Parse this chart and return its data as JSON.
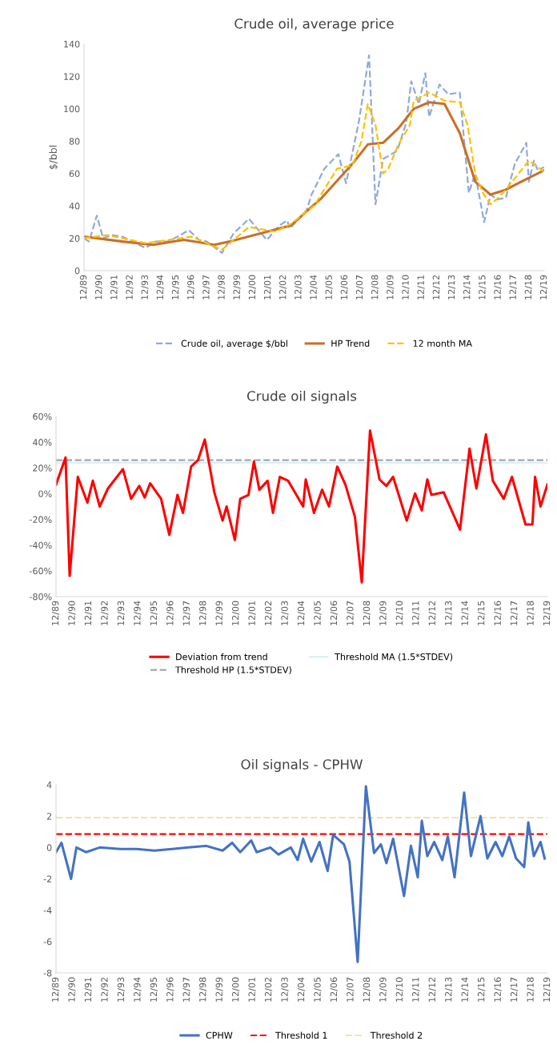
{
  "chart_data": [
    {
      "type": "line",
      "title": "Crude oil, average price",
      "ylabel": "$/bbl",
      "series": [
        {
          "name": "Crude oil, average $/bbl",
          "color": "#8faadc",
          "line_style": "dashed",
          "x": [
            "1989-12",
            "1990-04",
            "1990-10",
            "1991-03",
            "1991-10",
            "1992-06",
            "1993-12",
            "1994-08",
            "1995-06",
            "1996-10",
            "1997-06",
            "1997-12",
            "1998-12",
            "1999-09",
            "2000-09",
            "2001-11",
            "2002-09",
            "2003-03",
            "2003-05",
            "2004-06",
            "2004-10",
            "2005-08",
            "2006-07",
            "2007-01",
            "2007-11",
            "2008-07",
            "2008-12",
            "2009-06",
            "2010-05",
            "2010-12",
            "2011-04",
            "2011-10",
            "2012-03",
            "2012-06",
            "2013-02",
            "2013-09",
            "2014-06",
            "2015-01",
            "2015-06",
            "2016-01",
            "2016-06",
            "2016-11",
            "2017-06",
            "2018-01",
            "2018-10",
            "2018-12",
            "2019-04",
            "2019-07",
            "2019-12"
          ],
          "values": [
            20,
            18,
            34,
            20,
            22,
            21,
            14,
            18,
            18,
            25,
            19,
            18,
            11,
            23,
            32,
            19,
            28,
            31,
            26,
            37,
            47,
            63,
            72,
            54,
            92,
            133,
            41,
            69,
            74,
            91,
            117,
            103,
            122,
            95,
            115,
            109,
            110,
            48,
            60,
            30,
            47,
            44,
            45,
            66,
            79,
            55,
            68,
            62,
            64
          ]
        },
        {
          "name": "HP Trend",
          "color": "#c9702a",
          "line_style": "solid",
          "x": [
            "1989-12",
            "1992-06",
            "1994-06",
            "1996-06",
            "1998-06",
            "1999-06",
            "2001-06",
            "2003-06",
            "2005-06",
            "2007-06",
            "2008-06",
            "2009-06",
            "2010-06",
            "2011-06",
            "2012-06",
            "2013-06",
            "2014-06",
            "2015-06",
            "2016-06",
            "2017-06",
            "2018-06",
            "2019-12"
          ],
          "values": [
            21,
            18,
            16,
            19,
            16,
            18,
            23,
            28,
            45,
            66,
            78,
            79,
            88,
            100,
            104,
            103,
            85,
            55,
            47,
            50,
            55,
            62
          ]
        },
        {
          "name": "12 month MA",
          "color": "#ffc000",
          "line_style": "dashed",
          "x": [
            "1989-12",
            "1991-06",
            "1993-12",
            "1996-12",
            "1998-12",
            "2000-09",
            "2002-06",
            "2003-06",
            "2004-12",
            "2006-06",
            "2007-06",
            "2008-01",
            "2008-06",
            "2008-12",
            "2009-06",
            "2009-10",
            "2010-06",
            "2011-03",
            "2011-06",
            "2012-06",
            "2013-06",
            "2014-06",
            "2014-12",
            "2015-06",
            "2015-12",
            "2016-06",
            "2016-12",
            "2017-06",
            "2018-06",
            "2018-12",
            "2019-12"
          ],
          "values": [
            20,
            22,
            17,
            21,
            13,
            27,
            24,
            29,
            40,
            63,
            65,
            80,
            103,
            90,
            60,
            63,
            78,
            90,
            105,
            110,
            105,
            104,
            90,
            60,
            48,
            41,
            45,
            50,
            62,
            68,
            61
          ]
        }
      ],
      "xlim": [
        "1989-12",
        "2019-12"
      ],
      "xticks": [
        {
          "value": "1989-12",
          "label": "12/89"
        },
        {
          "value": "1990-12",
          "label": "12/90"
        },
        {
          "value": "1991-12",
          "label": "12/91"
        },
        {
          "value": "1992-12",
          "label": "12/92"
        },
        {
          "value": "1993-12",
          "label": "12/93"
        },
        {
          "value": "1994-12",
          "label": "12/94"
        },
        {
          "value": "1995-12",
          "label": "12/95"
        },
        {
          "value": "1996-12",
          "label": "12/96"
        },
        {
          "value": "1997-12",
          "label": "12/97"
        },
        {
          "value": "1998-12",
          "label": "12/98"
        },
        {
          "value": "1999-12",
          "label": "12/99"
        },
        {
          "value": "2000-12",
          "label": "12/00"
        },
        {
          "value": "2001-12",
          "label": "12/01"
        },
        {
          "value": "2002-12",
          "label": "12/02"
        },
        {
          "value": "2003-12",
          "label": "12/03"
        },
        {
          "value": "2004-12",
          "label": "12/04"
        },
        {
          "value": "2005-12",
          "label": "12/05"
        },
        {
          "value": "2006-12",
          "label": "12/06"
        },
        {
          "value": "2007-12",
          "label": "12/07"
        },
        {
          "value": "2008-12",
          "label": "12/08"
        },
        {
          "value": "2009-12",
          "label": "12/09"
        },
        {
          "value": "2010-12",
          "label": "12/10"
        },
        {
          "value": "2011-12",
          "label": "12/11"
        },
        {
          "value": "2012-12",
          "label": "12/12"
        },
        {
          "value": "2013-12",
          "label": "12/13"
        },
        {
          "value": "2014-12",
          "label": "12/14"
        },
        {
          "value": "2015-12",
          "label": "12/15"
        },
        {
          "value": "2016-12",
          "label": "12/16"
        },
        {
          "value": "2017-12",
          "label": "12/17"
        },
        {
          "value": "2018-12",
          "label": "12/18"
        },
        {
          "value": "2019-12",
          "label": "12/19"
        }
      ],
      "ylim": [
        0,
        140
      ],
      "yticks": [
        0,
        20,
        40,
        60,
        80,
        100,
        120,
        140
      ],
      "grid": false,
      "legend": "bottom"
    },
    {
      "type": "line",
      "title": "Crude oil signals",
      "series": [
        {
          "name": "Deviation from trend",
          "color": "#ff0000",
          "line_style": "solid",
          "x": [
            "1989-12",
            "1990-07",
            "1990-10",
            "1991-04",
            "1991-11",
            "1992-03",
            "1992-08",
            "1993-02",
            "1994-01",
            "1994-07",
            "1995-01",
            "1995-05",
            "1995-09",
            "1996-05",
            "1996-11",
            "1997-05",
            "1997-09",
            "1998-03",
            "1998-08",
            "1999-01",
            "1999-08",
            "2000-02",
            "2000-05",
            "2000-11",
            "2001-03",
            "2001-09",
            "2002-01",
            "2002-05",
            "2002-11",
            "2003-03",
            "2003-08",
            "2004-02",
            "2004-07",
            "2005-01",
            "2005-03",
            "2005-09",
            "2006-03",
            "2006-08",
            "2007-02",
            "2007-08",
            "2008-03",
            "2008-08",
            "2009-02",
            "2009-09",
            "2010-02",
            "2010-07",
            "2011-05",
            "2011-11",
            "2012-04",
            "2012-08",
            "2012-11",
            "2013-08",
            "2014-08",
            "2015-03",
            "2015-08",
            "2016-03",
            "2016-08",
            "2017-04",
            "2017-10",
            "2018-08",
            "2019-01",
            "2019-03",
            "2019-07",
            "2019-12"
          ],
          "values": [
            7,
            28,
            -64,
            13,
            -7,
            10,
            -10,
            4,
            19,
            -4,
            6,
            -3,
            8,
            -4,
            -32,
            -1,
            -15,
            21,
            26,
            42,
            1,
            -21,
            -10,
            -36,
            -4,
            -1,
            25,
            3,
            10,
            -15,
            13,
            10,
            1,
            -10,
            11,
            -15,
            3,
            -10,
            21,
            7,
            -18,
            -69,
            49,
            11,
            6,
            13,
            -21,
            0,
            -13,
            11,
            -1,
            1,
            -28,
            35,
            4,
            46,
            10,
            -4,
            13,
            -24,
            -24,
            13,
            -10,
            7
          ]
        }
      ],
      "ref_lines": [
        {
          "axis": "y",
          "value": 26,
          "label": "Threshold HP (1.5*STDEV)",
          "color": "#a6a6a6",
          "line_style": "dashed"
        },
        {
          "axis": "y",
          "value": 24,
          "label": "Threshold MA (1.5*STDEV)",
          "color": "#dbeef4",
          "line_style": "solid"
        }
      ],
      "xlim": [
        "1989-12",
        "2019-12"
      ],
      "xticks": [
        {
          "value": "1989-12",
          "label": "12/89"
        },
        {
          "value": "1990-12",
          "label": "12/90"
        },
        {
          "value": "1991-12",
          "label": "12/91"
        },
        {
          "value": "1992-12",
          "label": "12/92"
        },
        {
          "value": "1993-12",
          "label": "12/93"
        },
        {
          "value": "1994-12",
          "label": "12/94"
        },
        {
          "value": "1995-12",
          "label": "12/95"
        },
        {
          "value": "1996-12",
          "label": "12/96"
        },
        {
          "value": "1997-12",
          "label": "12/97"
        },
        {
          "value": "1998-12",
          "label": "12/98"
        },
        {
          "value": "1999-12",
          "label": "12/99"
        },
        {
          "value": "2000-12",
          "label": "12/00"
        },
        {
          "value": "2001-12",
          "label": "12/01"
        },
        {
          "value": "2002-12",
          "label": "12/02"
        },
        {
          "value": "2003-12",
          "label": "12/03"
        },
        {
          "value": "2004-12",
          "label": "12/04"
        },
        {
          "value": "2005-12",
          "label": "12/05"
        },
        {
          "value": "2006-12",
          "label": "12/06"
        },
        {
          "value": "2007-12",
          "label": "12/07"
        },
        {
          "value": "2008-12",
          "label": "12/08"
        },
        {
          "value": "2009-12",
          "label": "12/09"
        },
        {
          "value": "2010-12",
          "label": "12/10"
        },
        {
          "value": "2011-12",
          "label": "12/11"
        },
        {
          "value": "2012-12",
          "label": "12/12"
        },
        {
          "value": "2013-12",
          "label": "12/13"
        },
        {
          "value": "2014-12",
          "label": "12/14"
        },
        {
          "value": "2015-12",
          "label": "12/15"
        },
        {
          "value": "2016-12",
          "label": "12/16"
        },
        {
          "value": "2017-12",
          "label": "12/17"
        },
        {
          "value": "2018-12",
          "label": "12/18"
        },
        {
          "value": "2019-12",
          "label": "12/19"
        }
      ],
      "ylim": [
        -80,
        60
      ],
      "yticks": [
        {
          "value": 60,
          "label": "60%"
        },
        {
          "value": 40,
          "label": "40%"
        },
        {
          "value": 20,
          "label": "20%"
        },
        {
          "value": 0,
          "label": "0%"
        },
        {
          "value": -20,
          "label": "-20%"
        },
        {
          "value": -40,
          "label": "-40%"
        },
        {
          "value": -60,
          "label": "-60%"
        },
        {
          "value": -80,
          "label": "-80%"
        }
      ],
      "grid": false,
      "legend": "bottom"
    },
    {
      "type": "line",
      "title": "Oil signals - CPHW",
      "series": [
        {
          "name": "CPHW",
          "color": "#4472c4",
          "line_style": "solid",
          "x": [
            "1989-12",
            "1990-04",
            "1990-11",
            "1991-03",
            "1991-10",
            "1992-08",
            "1993-11",
            "1994-11",
            "1995-12",
            "1997-01",
            "1998-01",
            "1999-02",
            "2000-02",
            "2000-09",
            "2001-03",
            "2001-11",
            "2002-03",
            "2003-01",
            "2003-07",
            "2004-04",
            "2004-09",
            "2005-01",
            "2005-07",
            "2006-01",
            "2006-07",
            "2006-11",
            "2007-07",
            "2007-11",
            "2008-05",
            "2008-11",
            "2009-05",
            "2009-10",
            "2010-02",
            "2010-07",
            "2011-03",
            "2011-08",
            "2012-01",
            "2012-04",
            "2012-08",
            "2013-01",
            "2013-07",
            "2013-11",
            "2014-04",
            "2014-11",
            "2015-04",
            "2015-11",
            "2016-04",
            "2016-10",
            "2017-03",
            "2017-08",
            "2018-01",
            "2018-07",
            "2018-10",
            "2019-02",
            "2019-07",
            "2019-10"
          ],
          "values": [
            -0.3,
            0.3,
            -2.0,
            0,
            -0.3,
            0,
            -0.1,
            -0.1,
            -0.2,
            -0.1,
            0,
            0.1,
            -0.2,
            0.3,
            -0.3,
            0.45,
            -0.3,
            0,
            -0.45,
            0,
            -0.8,
            0.55,
            -0.9,
            0.35,
            -1.5,
            0.8,
            0.2,
            -0.9,
            -7.3,
            3.9,
            -0.35,
            0.2,
            -1.0,
            0.55,
            -3.1,
            0.1,
            -1.9,
            1.7,
            -0.55,
            0.35,
            -0.8,
            0.7,
            -1.9,
            3.5,
            -0.55,
            2.0,
            -0.7,
            0.35,
            -0.55,
            0.7,
            -0.7,
            -1.25,
            1.6,
            -0.55,
            0.35,
            -0.7
          ]
        }
      ],
      "ref_lines": [
        {
          "axis": "y",
          "value": 0.85,
          "label": "Threshold 1",
          "color": "#ff0000",
          "line_style": "dashed"
        },
        {
          "axis": "y",
          "value": 1.9,
          "label": "Threshold 2",
          "color": "#f2e3b3",
          "line_style": "dashed"
        }
      ],
      "xlim": [
        "1989-12",
        "2019-12"
      ],
      "xticks": [
        {
          "value": "1989-12",
          "label": "12/89"
        },
        {
          "value": "1990-12",
          "label": "12/90"
        },
        {
          "value": "1991-12",
          "label": "12/91"
        },
        {
          "value": "1992-12",
          "label": "12/92"
        },
        {
          "value": "1993-12",
          "label": "12/93"
        },
        {
          "value": "1994-12",
          "label": "12/94"
        },
        {
          "value": "1995-12",
          "label": "12/95"
        },
        {
          "value": "1996-12",
          "label": "12/96"
        },
        {
          "value": "1997-12",
          "label": "12/97"
        },
        {
          "value": "1998-12",
          "label": "12/98"
        },
        {
          "value": "1999-12",
          "label": "12/99"
        },
        {
          "value": "2000-12",
          "label": "12/00"
        },
        {
          "value": "2001-12",
          "label": "12/01"
        },
        {
          "value": "2002-12",
          "label": "12/02"
        },
        {
          "value": "2003-12",
          "label": "12/03"
        },
        {
          "value": "2004-12",
          "label": "12/04"
        },
        {
          "value": "2005-12",
          "label": "12/05"
        },
        {
          "value": "2006-12",
          "label": "12/06"
        },
        {
          "value": "2007-12",
          "label": "12/07"
        },
        {
          "value": "2008-12",
          "label": "12/08"
        },
        {
          "value": "2009-12",
          "label": "12/09"
        },
        {
          "value": "2010-12",
          "label": "12/10"
        },
        {
          "value": "2011-12",
          "label": "12/11"
        },
        {
          "value": "2012-12",
          "label": "12/12"
        },
        {
          "value": "2013-12",
          "label": "12/13"
        },
        {
          "value": "2014-12",
          "label": "12/14"
        },
        {
          "value": "2015-12",
          "label": "12/15"
        },
        {
          "value": "2016-12",
          "label": "12/16"
        },
        {
          "value": "2017-12",
          "label": "12/17"
        },
        {
          "value": "2018-12",
          "label": "12/18"
        },
        {
          "value": "2019-12",
          "label": "12/19"
        }
      ],
      "ylim": [
        -8,
        4
      ],
      "yticks": [
        4,
        2,
        0,
        -2,
        -4,
        -6,
        -8
      ],
      "grid": false,
      "legend": "bottom"
    }
  ]
}
